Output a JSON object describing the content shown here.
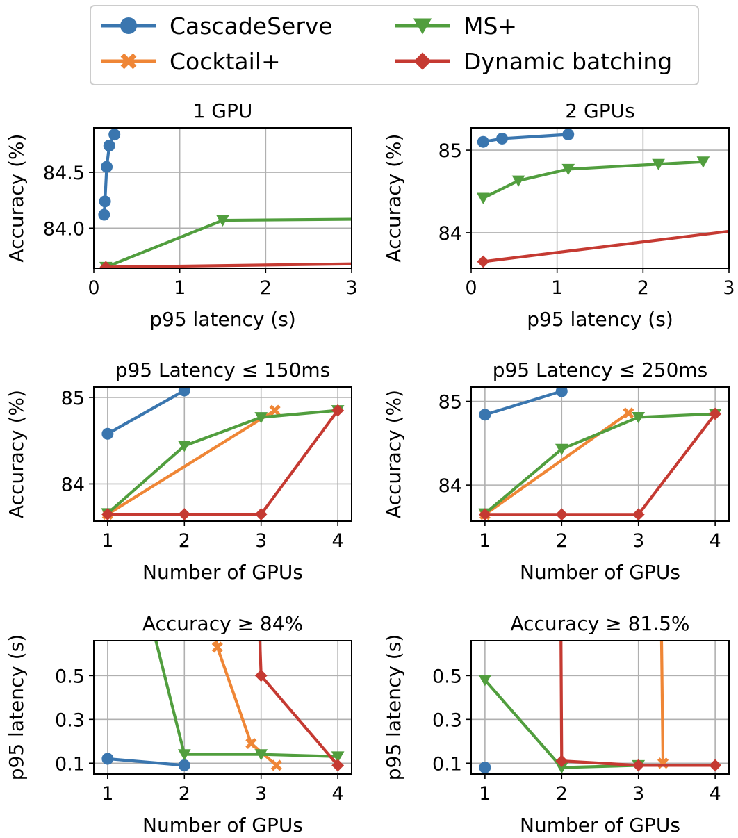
{
  "colors": {
    "CascadeServe": "#3a76af",
    "Cocktail+": "#ef8636",
    "MS+": "#519e3e",
    "Dynamic batching": "#c53a32"
  },
  "legend": {
    "entries": [
      {
        "name": "CascadeServe",
        "marker": "circle"
      },
      {
        "name": "Cocktail+",
        "marker": "x"
      },
      {
        "name": "MS+",
        "marker": "triangle-down"
      },
      {
        "name": "Dynamic batching",
        "marker": "diamond"
      }
    ]
  },
  "chart_data": [
    {
      "type": "line",
      "title": "1 GPU",
      "xlabel": "p95 latency (s)",
      "ylabel": "Accuracy (%)",
      "xlim": [
        0,
        3
      ],
      "ylim": [
        83.64,
        84.9
      ],
      "xticks": [
        0,
        1,
        2,
        3
      ],
      "xticklabels": [
        "0",
        "1",
        "2",
        "3"
      ],
      "yticks": [
        84.0,
        84.5
      ],
      "yticklabels": [
        "84.0",
        "84.5"
      ],
      "series": [
        {
          "name": "CascadeServe",
          "x": [
            0.12,
            0.13,
            0.15,
            0.18,
            0.24
          ],
          "y": [
            84.12,
            84.24,
            84.55,
            84.74,
            84.84
          ]
        },
        {
          "name": "MS+",
          "x": [
            0.14,
            1.5,
            3.1
          ],
          "y": [
            83.65,
            84.07,
            84.08
          ]
        },
        {
          "name": "Dynamic batching",
          "x": [
            0.14,
            3.1
          ],
          "y": [
            83.65,
            83.68
          ]
        }
      ]
    },
    {
      "type": "line",
      "title": "2 GPUs",
      "xlabel": "p95 latency (s)",
      "ylabel": "Accuracy (%)",
      "xlim": [
        0,
        3
      ],
      "ylim": [
        83.57,
        85.27
      ],
      "xticks": [
        0,
        1,
        2,
        3
      ],
      "xticklabels": [
        "0",
        "1",
        "2",
        "3"
      ],
      "yticks": [
        84,
        85
      ],
      "yticklabels": [
        "84",
        "85"
      ],
      "series": [
        {
          "name": "CascadeServe",
          "x": [
            0.14,
            0.36,
            1.13
          ],
          "y": [
            85.1,
            85.14,
            85.19
          ]
        },
        {
          "name": "MS+",
          "x": [
            0.14,
            0.55,
            1.13,
            2.18,
            2.7
          ],
          "y": [
            84.42,
            84.63,
            84.77,
            84.83,
            84.86
          ]
        },
        {
          "name": "Dynamic batching",
          "x": [
            0.14,
            3.1
          ],
          "y": [
            83.65,
            84.03
          ]
        }
      ]
    },
    {
      "type": "line",
      "title": "p95 Latency ≤ 150ms",
      "xlabel": "Number of GPUs",
      "ylabel": "Accuracy (%)",
      "xlim": [
        0.82,
        4.18
      ],
      "ylim": [
        83.57,
        85.12
      ],
      "xticks": [
        1,
        2,
        3,
        4
      ],
      "xticklabels": [
        "1",
        "2",
        "3",
        "4"
      ],
      "yticks": [
        84,
        85
      ],
      "yticklabels": [
        "84",
        "85"
      ],
      "series": [
        {
          "name": "CascadeServe",
          "x": [
            1,
            2
          ],
          "y": [
            84.58,
            85.08
          ]
        },
        {
          "name": "Cocktail+",
          "x": [
            1,
            3.18
          ],
          "y": [
            83.65,
            84.85
          ]
        },
        {
          "name": "MS+",
          "x": [
            1,
            2,
            3,
            4
          ],
          "y": [
            83.66,
            84.44,
            84.77,
            84.85
          ]
        },
        {
          "name": "Dynamic batching",
          "x": [
            1,
            2,
            3,
            4
          ],
          "y": [
            83.65,
            83.65,
            83.65,
            84.85
          ]
        }
      ]
    },
    {
      "type": "line",
      "title": "p95 Latency ≤ 250ms",
      "xlabel": "Number of GPUs",
      "ylabel": "Accuracy (%)",
      "xlim": [
        0.82,
        4.18
      ],
      "ylim": [
        83.57,
        85.17
      ],
      "xticks": [
        1,
        2,
        3,
        4
      ],
      "xticklabels": [
        "1",
        "2",
        "3",
        "4"
      ],
      "yticks": [
        84,
        85
      ],
      "yticklabels": [
        "84",
        "85"
      ],
      "series": [
        {
          "name": "CascadeServe",
          "x": [
            1,
            2
          ],
          "y": [
            84.84,
            85.12
          ]
        },
        {
          "name": "Cocktail+",
          "x": [
            1,
            2.87
          ],
          "y": [
            83.65,
            84.86
          ]
        },
        {
          "name": "MS+",
          "x": [
            1,
            2,
            3,
            4
          ],
          "y": [
            83.66,
            84.43,
            84.81,
            84.85
          ]
        },
        {
          "name": "Dynamic batching",
          "x": [
            1,
            2,
            3,
            4
          ],
          "y": [
            83.65,
            83.65,
            83.65,
            84.85
          ]
        }
      ]
    },
    {
      "type": "line",
      "title": "Accuracy ≥ 84%",
      "xlabel": "Number of GPUs",
      "ylabel": "p95 latency (s)",
      "xlim": [
        0.82,
        4.18
      ],
      "ylim": [
        0.05,
        0.66
      ],
      "xticks": [
        1,
        2,
        3,
        4
      ],
      "xticklabels": [
        "1",
        "2",
        "3",
        "4"
      ],
      "yticks": [
        0.1,
        0.3,
        0.5
      ],
      "yticklabels": [
        "0.1",
        "0.3",
        "0.5"
      ],
      "series": [
        {
          "name": "CascadeServe",
          "x": [
            1,
            2
          ],
          "y": [
            0.12,
            0.09
          ]
        },
        {
          "name": "Cocktail+",
          "x": [
            2.43,
            2.87,
            3.2
          ],
          "y": [
            0.63,
            0.19,
            0.09
          ],
          "extend_top_from": 0.7
        },
        {
          "name": "MS+",
          "x": [
            1.6,
            2,
            3,
            4
          ],
          "y": [
            0.7,
            0.14,
            0.14,
            0.13
          ]
        },
        {
          "name": "Dynamic batching",
          "x": [
            2.98,
            3,
            4
          ],
          "y": [
            0.7,
            0.5,
            0.09
          ]
        }
      ]
    },
    {
      "type": "line",
      "title": "Accuracy ≥ 81.5%",
      "xlabel": "Number of GPUs",
      "ylabel": "p95 latency (s)",
      "xlim": [
        0.82,
        4.18
      ],
      "ylim": [
        0.05,
        0.66
      ],
      "xticks": [
        1,
        2,
        3,
        4
      ],
      "xticklabels": [
        "1",
        "2",
        "3",
        "4"
      ],
      "yticks": [
        0.1,
        0.3,
        0.5
      ],
      "yticklabels": [
        "0.1",
        "0.3",
        "0.5"
      ],
      "series": [
        {
          "name": "CascadeServe",
          "x": [
            1
          ],
          "y": [
            0.08
          ]
        },
        {
          "name": "Cocktail+",
          "x": [
            3.3,
            3.32
          ],
          "y": [
            0.7,
            0.1
          ]
        },
        {
          "name": "MS+",
          "x": [
            1,
            2,
            3
          ],
          "y": [
            0.48,
            0.08,
            0.09
          ]
        },
        {
          "name": "Dynamic batching",
          "x": [
            1.99,
            2,
            3,
            4
          ],
          "y": [
            0.7,
            0.11,
            0.09,
            0.09
          ]
        }
      ]
    }
  ]
}
